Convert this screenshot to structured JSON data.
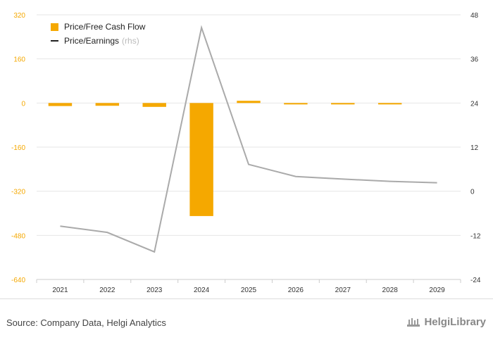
{
  "legend": {
    "bar_label": "Price/Free Cash Flow",
    "line_label": "Price/Earnings",
    "line_suffix": "(rhs)"
  },
  "footer": {
    "source": "Source: Company Data, Helgi Analytics",
    "brand": "HelgiLibrary"
  },
  "colors": {
    "bar": "#f5a800",
    "line": "#aaaaaa",
    "left_axis_text": "#f5a800",
    "grid": "#e6e6e6"
  },
  "chart_data": {
    "type": "bar",
    "categories": [
      "2021",
      "2022",
      "2023",
      "2024",
      "2025",
      "2026",
      "2027",
      "2028",
      "2029"
    ],
    "series": [
      {
        "name": "Price/Free Cash Flow",
        "type": "bar",
        "axis": "left",
        "values": [
          -11,
          -10,
          -14,
          -410,
          8,
          -1,
          -1,
          -1,
          null
        ]
      },
      {
        "name": "Price/Earnings",
        "type": "line",
        "axis": "right",
        "values": [
          -9.5,
          -11.2,
          -16.5,
          44.5,
          7.3,
          4.0,
          3.3,
          2.7,
          2.3
        ]
      }
    ],
    "ylim_left": [
      -640,
      320
    ],
    "yticks_left": [
      320,
      160,
      0,
      -160,
      -320,
      -480,
      -640
    ],
    "ylim_right": [
      -24,
      48
    ],
    "yticks_right": [
      48,
      36,
      24,
      12,
      0,
      -12,
      -24
    ],
    "grid": true,
    "legend_position": "top-left"
  }
}
